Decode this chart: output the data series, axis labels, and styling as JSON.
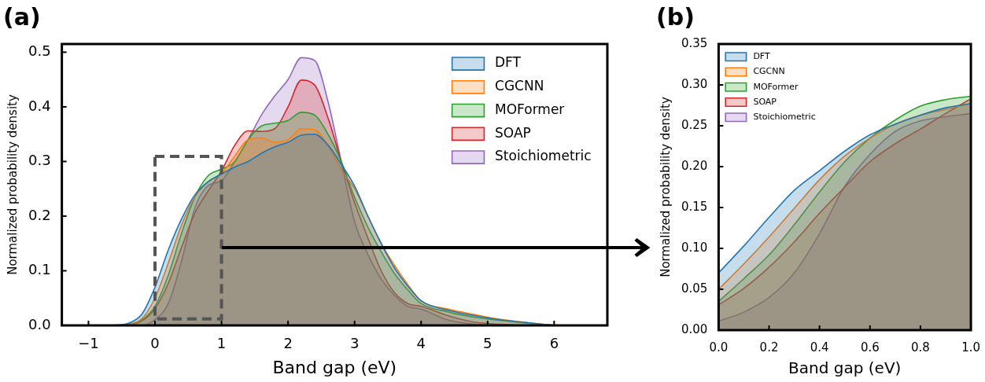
{
  "chart_data": [
    {
      "type": "area",
      "title": "(a)",
      "xlabel": "Band gap (eV)",
      "ylabel": "Normalized probability density",
      "legend": "top right",
      "x": [
        -0.6,
        -0.4,
        -0.2,
        0,
        0.2,
        0.4,
        0.6,
        0.8,
        1.0,
        1.2,
        1.4,
        1.6,
        1.8,
        2.0,
        2.2,
        2.4,
        2.6,
        2.8,
        3.0,
        3.2,
        3.4,
        3.6,
        3.8,
        4.0,
        4.4,
        4.8,
        5.2,
        5.6,
        6.0
      ],
      "series": [
        {
          "name": "DFT",
          "color": "#1f77b4",
          "values": [
            0,
            0.004,
            0.02,
            0.07,
            0.138,
            0.195,
            0.239,
            0.263,
            0.277,
            0.29,
            0.3,
            0.315,
            0.327,
            0.335,
            0.348,
            0.35,
            0.33,
            0.295,
            0.255,
            0.2,
            0.15,
            0.105,
            0.072,
            0.045,
            0.028,
            0.018,
            0.01,
            0.005,
            0
          ]
        },
        {
          "name": "CGCNN",
          "color": "#ff7f0e",
          "values": [
            0,
            0.002,
            0.012,
            0.05,
            0.114,
            0.184,
            0.235,
            0.263,
            0.278,
            0.31,
            0.34,
            0.343,
            0.335,
            0.34,
            0.36,
            0.358,
            0.33,
            0.285,
            0.25,
            0.2,
            0.15,
            0.11,
            0.075,
            0.045,
            0.03,
            0.02,
            0.011,
            0.005,
            0
          ]
        },
        {
          "name": "MOFormer",
          "color": "#2ca02c",
          "values": [
            0,
            0.002,
            0.01,
            0.035,
            0.092,
            0.169,
            0.235,
            0.274,
            0.286,
            0.3,
            0.34,
            0.365,
            0.37,
            0.375,
            0.39,
            0.385,
            0.35,
            0.3,
            0.235,
            0.18,
            0.135,
            0.095,
            0.065,
            0.04,
            0.025,
            0.015,
            0.009,
            0.004,
            0
          ]
        },
        {
          "name": "SOAP",
          "color": "#d62728",
          "values": [
            0,
            0.001,
            0.008,
            0.031,
            0.077,
            0.143,
            0.206,
            0.246,
            0.283,
            0.33,
            0.356,
            0.355,
            0.36,
            0.4,
            0.449,
            0.44,
            0.38,
            0.3,
            0.225,
            0.16,
            0.1,
            0.06,
            0.04,
            0.035,
            0.018,
            0.006,
            0.002,
            0,
            0
          ]
        },
        {
          "name": "Stoichiometric",
          "color": "#9467bd",
          "values": [
            0,
            0,
            0,
            0.011,
            0.04,
            0.118,
            0.215,
            0.256,
            0.265,
            0.3,
            0.34,
            0.385,
            0.42,
            0.45,
            0.49,
            0.485,
            0.41,
            0.3,
            0.19,
            0.13,
            0.085,
            0.055,
            0.035,
            0.03,
            0.01,
            0.002,
            0,
            0,
            0
          ]
        }
      ],
      "xlim": [
        -1.4,
        6.8
      ],
      "ylim": [
        0,
        0.515
      ],
      "xticks": [
        {
          "value": -1,
          "label": "−1"
        },
        0,
        1,
        2,
        3,
        4,
        5,
        6
      ],
      "yticks": [
        {
          "value": 0,
          "label": "0.0"
        },
        0.1,
        0.2,
        0.3,
        0.4,
        0.5
      ]
    },
    {
      "type": "area",
      "title": "(b)",
      "xlabel": "Band gap (eV)",
      "ylabel": "Normalized probability density",
      "legend": "top left",
      "x": [
        0,
        0.1,
        0.2,
        0.3,
        0.4,
        0.5,
        0.6,
        0.7,
        0.8,
        0.9,
        1.0
      ],
      "series": [
        {
          "name": "DFT",
          "color": "#1f77b4",
          "values": [
            0.07,
            0.103,
            0.138,
            0.171,
            0.195,
            0.219,
            0.239,
            0.252,
            0.263,
            0.272,
            0.277
          ]
        },
        {
          "name": "CGCNN",
          "color": "#ff7f0e",
          "values": [
            0.05,
            0.081,
            0.114,
            0.149,
            0.184,
            0.213,
            0.235,
            0.252,
            0.263,
            0.27,
            0.278
          ]
        },
        {
          "name": "MOFormer",
          "color": "#2ca02c",
          "values": [
            0.035,
            0.063,
            0.092,
            0.129,
            0.169,
            0.206,
            0.235,
            0.257,
            0.274,
            0.282,
            0.286
          ]
        },
        {
          "name": "SOAP",
          "color": "#d62728",
          "values": [
            0.031,
            0.051,
            0.077,
            0.108,
            0.143,
            0.175,
            0.206,
            0.228,
            0.246,
            0.265,
            0.283
          ]
        },
        {
          "name": "Stoichiometric",
          "color": "#9467bd",
          "values": [
            0.011,
            0.022,
            0.04,
            0.07,
            0.118,
            0.176,
            0.215,
            0.243,
            0.256,
            0.261,
            0.265
          ]
        }
      ],
      "xlim": [
        0,
        1
      ],
      "ylim": [
        0,
        0.35
      ],
      "xticks": [
        {
          "value": 0,
          "label": "0.0"
        },
        0.2,
        0.4,
        0.6,
        0.8,
        {
          "value": 1,
          "label": "1.0"
        }
      ],
      "yticks": [
        {
          "value": 0,
          "label": "0.00"
        },
        {
          "value": 0.05,
          "label": "0.05"
        },
        {
          "value": 0.1,
          "label": "0.10"
        },
        {
          "value": 0.15,
          "label": "0.15"
        },
        {
          "value": 0.2,
          "label": "0.20"
        },
        {
          "value": 0.25,
          "label": "0.25"
        },
        {
          "value": 0.3,
          "label": "0.30"
        },
        {
          "value": 0.35,
          "label": "0.35"
        }
      ]
    }
  ]
}
